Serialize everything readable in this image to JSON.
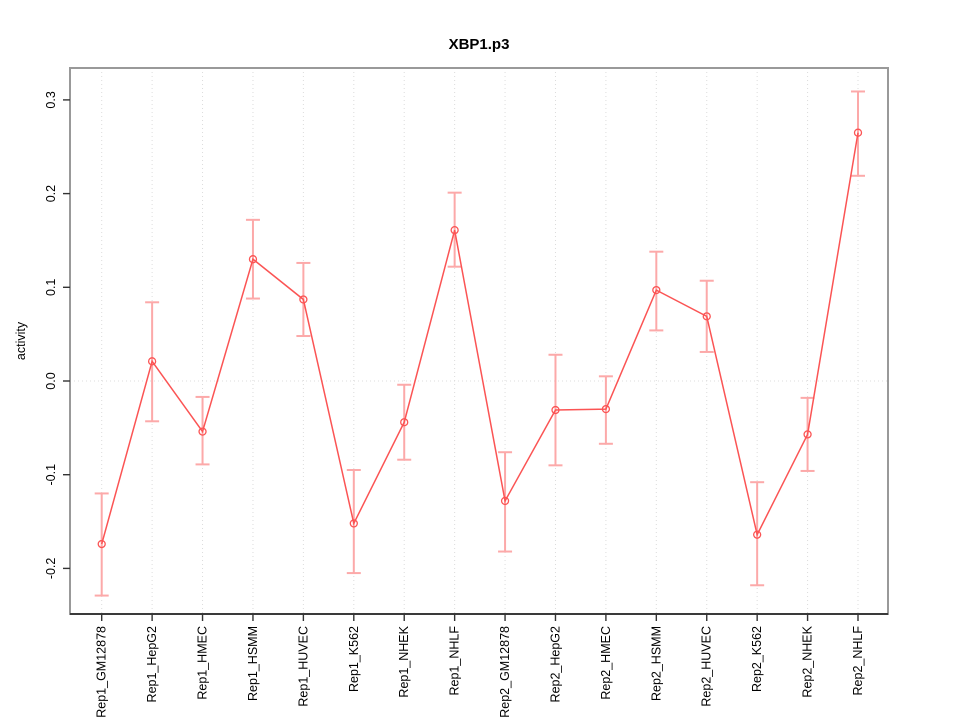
{
  "chart_data": {
    "type": "line",
    "title": "XBP1.p3",
    "xlabel": "",
    "ylabel": "activity",
    "ylim": [
      -0.248,
      0.335
    ],
    "yticks": [
      -0.2,
      -0.1,
      0.0,
      0.1,
      0.2,
      0.3
    ],
    "grid": "vertical dotted gridline at each category; dotted horizontal line at y=0",
    "legend": "none",
    "marker": "open-circle",
    "colors": {
      "series": "#FB5454",
      "errorbar": "#FCA9A9",
      "grid": "#DCDCDC",
      "zero_line": "#DCDCDC",
      "box_border": "#999999",
      "axis_line": "#1A1A1A",
      "tick": "#333333",
      "text": "#000000"
    },
    "categories": [
      "Rep1_GM12878",
      "Rep1_HepG2",
      "Rep1_HMEC",
      "Rep1_HSMM",
      "Rep1_HUVEC",
      "Rep1_K562",
      "Rep1_NHEK",
      "Rep1_NHLF",
      "Rep2_GM12878",
      "Rep2_HepG2",
      "Rep2_HMEC",
      "Rep2_HSMM",
      "Rep2_HUVEC",
      "Rep2_K562",
      "Rep2_NHEK",
      "Rep2_NHLF"
    ],
    "series": [
      {
        "name": "activity",
        "values": [
          -0.174,
          0.021,
          -0.054,
          0.13,
          0.087,
          -0.152,
          -0.044,
          0.161,
          -0.128,
          -0.031,
          -0.03,
          0.097,
          0.069,
          -0.164,
          -0.057,
          0.265
        ],
        "err_low": [
          -0.229,
          -0.043,
          -0.089,
          0.088,
          0.048,
          -0.205,
          -0.084,
          0.122,
          -0.182,
          -0.09,
          -0.067,
          0.054,
          0.031,
          -0.218,
          -0.096,
          0.219
        ],
        "err_high": [
          -0.12,
          0.084,
          -0.017,
          0.172,
          0.126,
          -0.095,
          -0.004,
          0.201,
          -0.076,
          0.028,
          0.005,
          0.138,
          0.107,
          -0.108,
          -0.018,
          0.309
        ]
      }
    ]
  }
}
